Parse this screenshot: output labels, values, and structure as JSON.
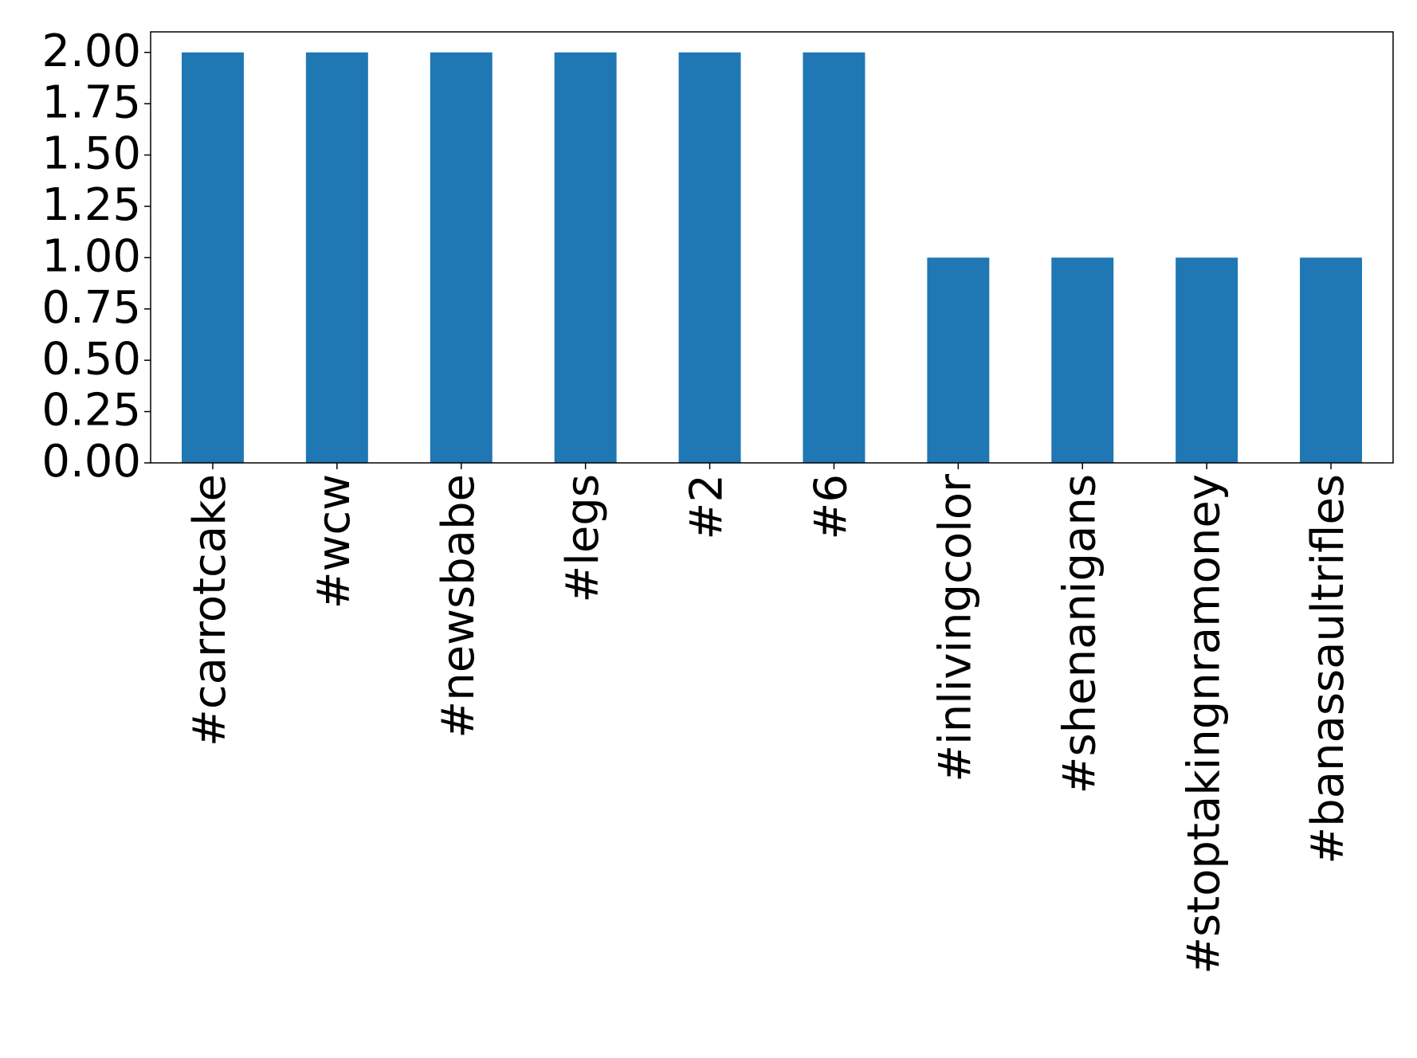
{
  "chart_data": {
    "type": "bar",
    "categories": [
      "#carrotcake",
      "#wcw",
      "#newsbabe",
      "#legs",
      "#2",
      "#6",
      "#inlivingcolor",
      "#shenanigans",
      "#stoptakingnramoney",
      "#banassaultrifles"
    ],
    "values": [
      2,
      2,
      2,
      2,
      2,
      2,
      1,
      1,
      1,
      1
    ],
    "color": "#1f77b4",
    "ylim": [
      0,
      2.1
    ],
    "yticks": [
      {
        "value": 0,
        "label": "0.00"
      },
      {
        "value": 0.25,
        "label": "0.25"
      },
      {
        "value": 0.5,
        "label": "0.50"
      },
      {
        "value": 0.75,
        "label": "0.75"
      },
      {
        "value": 1,
        "label": "1.00"
      },
      {
        "value": 1.25,
        "label": "1.25"
      },
      {
        "value": 1.5,
        "label": "1.50"
      },
      {
        "value": 1.75,
        "label": "1.75"
      },
      {
        "value": 2,
        "label": "2.00"
      }
    ],
    "grid": false
  }
}
